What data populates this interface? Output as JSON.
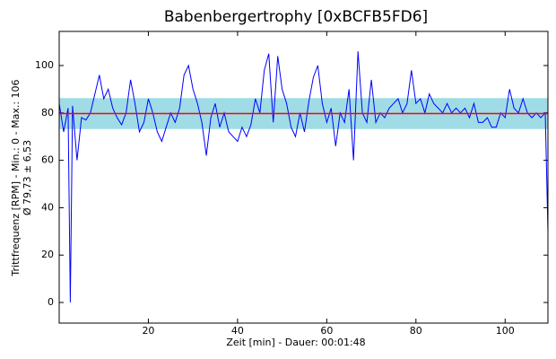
{
  "chart_data": {
    "type": "line",
    "title": "Babenbergertrophy [0xBCFB5FD6]",
    "y_label": "Trittfrequenz [RPM] - Min.: 0 - Max.: 106",
    "y_label2": "Ø 79,73 ± 6,53",
    "x_label": "Zeit [min] - Dauer: 00:01:48",
    "mean": 79.73,
    "std": 6.53,
    "mean_color": "#ff0000",
    "band_color": "#9fdce6",
    "xlim": [
      0,
      109.6
    ],
    "ylim": [
      -8.7,
      114.4
    ],
    "xticks": [
      20,
      40,
      60,
      80,
      100
    ],
    "yticks": [
      0,
      20,
      40,
      60,
      80,
      100
    ],
    "x": [
      0,
      1,
      2,
      2.5,
      3,
      4,
      5,
      6,
      7,
      8,
      9,
      10,
      11,
      12,
      13,
      14,
      15,
      16,
      17,
      18,
      19,
      20,
      21,
      22,
      23,
      24,
      25,
      26,
      27,
      28,
      29,
      30,
      31,
      32,
      33,
      34,
      35,
      36,
      37,
      38,
      39,
      40,
      41,
      42,
      43,
      44,
      45,
      46,
      47,
      48,
      49,
      50,
      51,
      52,
      53,
      54,
      55,
      56,
      57,
      58,
      59,
      60,
      61,
      62,
      63,
      64,
      65,
      66,
      67,
      68,
      69,
      70,
      71,
      72,
      73,
      74,
      75,
      76,
      77,
      78,
      79,
      80,
      81,
      82,
      83,
      84,
      85,
      86,
      87,
      88,
      89,
      90,
      91,
      92,
      93,
      94,
      95,
      96,
      97,
      98,
      99,
      100,
      101,
      102,
      103,
      104,
      105,
      106,
      107,
      108,
      109,
      109.6
    ],
    "series": [
      {
        "name": "Trittfrequenz",
        "color": "#0000ff",
        "values": [
          84,
          72,
          82,
          0,
          83,
          60,
          78,
          77,
          80,
          88,
          96,
          86,
          90,
          82,
          78,
          75,
          80,
          94,
          84,
          72,
          76,
          86,
          80,
          72,
          68,
          74,
          80,
          76,
          82,
          96,
          100,
          90,
          84,
          76,
          62,
          78,
          84,
          74,
          80,
          72,
          70,
          68,
          74,
          70,
          75,
          86,
          80,
          98,
          105,
          76,
          104,
          90,
          84,
          74,
          70,
          80,
          72,
          85,
          95,
          100,
          84,
          76,
          82,
          66,
          80,
          76,
          90,
          60,
          106,
          80,
          76,
          94,
          76,
          80,
          78,
          82,
          84,
          86,
          80,
          84,
          98,
          84,
          86,
          80,
          88,
          84,
          82,
          80,
          84,
          80,
          82,
          80,
          82,
          78,
          84,
          76,
          76,
          78,
          74,
          74,
          80,
          78,
          90,
          82,
          80,
          86,
          80,
          78,
          80,
          78,
          80,
          30
        ]
      }
    ]
  }
}
